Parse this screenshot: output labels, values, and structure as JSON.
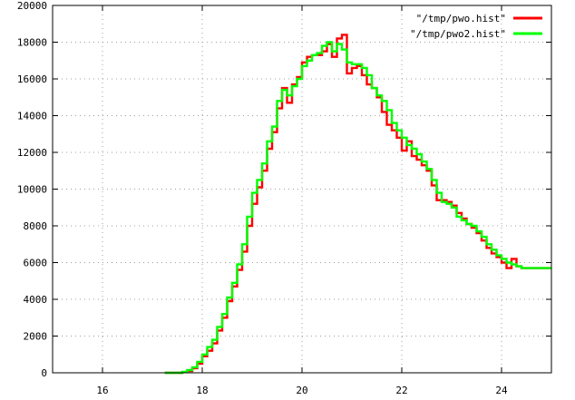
{
  "chart_data": {
    "type": "line",
    "title": "",
    "xlabel": "",
    "ylabel": "",
    "xlim": [
      15,
      25
    ],
    "ylim": [
      0,
      20000
    ],
    "xticks": [
      16,
      18,
      20,
      22,
      24
    ],
    "yticks": [
      0,
      2000,
      4000,
      6000,
      8000,
      10000,
      12000,
      14000,
      16000,
      18000,
      20000
    ],
    "grid": true,
    "legend_position": "top-right",
    "step": true,
    "series": [
      {
        "name": "\"/tmp/pwo.hist\"",
        "color": "#ff0000",
        "x": [
          17.25,
          17.5,
          17.6,
          17.7,
          17.8,
          17.9,
          18.0,
          18.1,
          18.2,
          18.3,
          18.4,
          18.5,
          18.6,
          18.7,
          18.8,
          18.9,
          19.0,
          19.1,
          19.2,
          19.3,
          19.4,
          19.5,
          19.6,
          19.7,
          19.8,
          19.9,
          20.0,
          20.1,
          20.2,
          20.3,
          20.4,
          20.5,
          20.6,
          20.7,
          20.8,
          20.9,
          21.0,
          21.1,
          21.2,
          21.3,
          21.4,
          21.5,
          21.6,
          21.7,
          21.8,
          21.9,
          22.0,
          22.1,
          22.2,
          22.3,
          22.4,
          22.5,
          22.6,
          22.7,
          22.8,
          22.9,
          23.0,
          23.1,
          23.2,
          23.3,
          23.4,
          23.5,
          23.6,
          23.7,
          23.8,
          23.9,
          24.0,
          24.1,
          24.2,
          24.3,
          24.4,
          24.5,
          24.6,
          24.7,
          24.8,
          24.9,
          25.0
        ],
        "y": [
          0,
          0,
          40,
          100,
          250,
          500,
          900,
          1200,
          1600,
          2300,
          3000,
          3900,
          4700,
          5600,
          6600,
          8000,
          9200,
          10100,
          11000,
          12200,
          13100,
          14400,
          15500,
          14700,
          15700,
          16100,
          16900,
          17200,
          17300,
          17300,
          17500,
          17900,
          17200,
          18200,
          18400,
          16300,
          16600,
          16700,
          16200,
          15700,
          15500,
          15000,
          14200,
          13500,
          13200,
          12800,
          12100,
          12600,
          11800,
          11600,
          11300,
          11000,
          10200,
          9400,
          9400,
          9300,
          9100,
          8700,
          8400,
          8100,
          7900,
          7600,
          7200,
          6800,
          6500,
          6300,
          6000,
          5700,
          6200,
          5800,
          5700,
          5700,
          5700,
          5700,
          5700,
          5700,
          5700
        ]
      },
      {
        "name": "\"/tmp/pwo2.hist\"",
        "color": "#00ff00",
        "x": [
          17.25,
          17.5,
          17.6,
          17.7,
          17.8,
          17.9,
          18.0,
          18.1,
          18.2,
          18.3,
          18.4,
          18.5,
          18.6,
          18.7,
          18.8,
          18.9,
          19.0,
          19.1,
          19.2,
          19.3,
          19.4,
          19.5,
          19.6,
          19.7,
          19.8,
          19.9,
          20.0,
          20.1,
          20.2,
          20.3,
          20.4,
          20.5,
          20.6,
          20.7,
          20.8,
          20.9,
          21.0,
          21.1,
          21.2,
          21.3,
          21.4,
          21.5,
          21.6,
          21.7,
          21.8,
          21.9,
          22.0,
          22.1,
          22.2,
          22.3,
          22.4,
          22.5,
          22.6,
          22.7,
          22.8,
          22.9,
          23.0,
          23.1,
          23.2,
          23.3,
          23.4,
          23.5,
          23.6,
          23.7,
          23.8,
          23.9,
          24.0,
          24.1,
          24.2,
          24.3,
          24.4,
          24.5,
          24.6,
          24.7,
          24.8,
          24.9,
          25.0
        ],
        "y": [
          0,
          0,
          50,
          150,
          300,
          600,
          1000,
          1400,
          1800,
          2500,
          3200,
          4100,
          4900,
          5900,
          7000,
          8500,
          9800,
          10500,
          11400,
          12600,
          13400,
          14800,
          15400,
          15100,
          15600,
          16000,
          16700,
          17000,
          17300,
          17400,
          17800,
          18000,
          17500,
          17900,
          17600,
          16900,
          16800,
          16800,
          16600,
          16200,
          15500,
          15100,
          14800,
          14300,
          13600,
          13200,
          12800,
          12400,
          12200,
          11900,
          11500,
          11100,
          10500,
          9800,
          9300,
          9200,
          9000,
          8500,
          8300,
          8100,
          8000,
          7700,
          7400,
          7000,
          6700,
          6400,
          6200,
          6000,
          5900,
          5800,
          5700,
          5700,
          5700,
          5700,
          5700,
          5700,
          5700
        ]
      }
    ]
  }
}
